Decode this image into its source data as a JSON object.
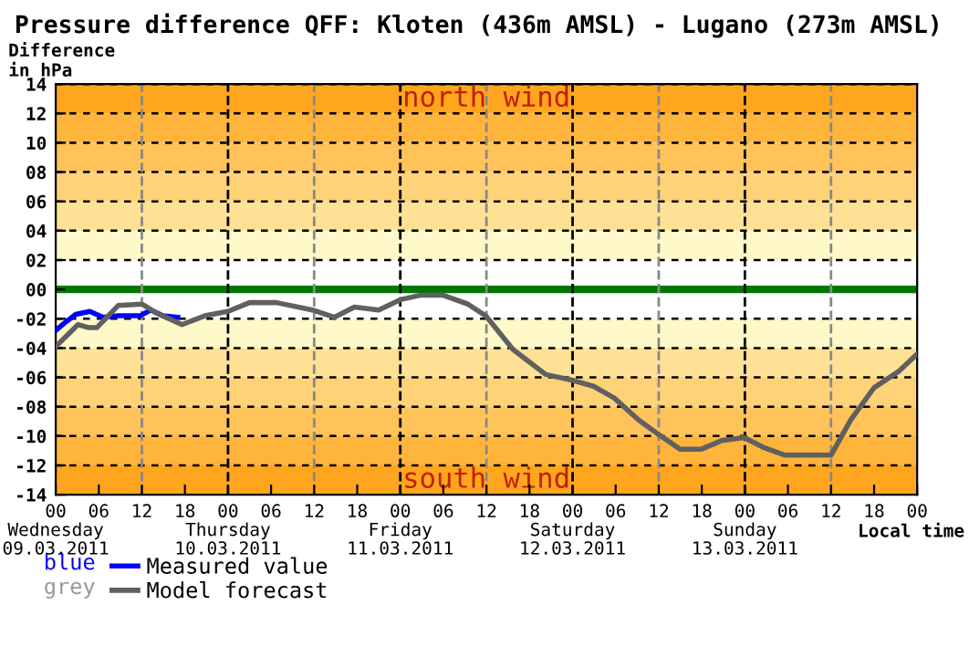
{
  "chart_data": {
    "type": "line",
    "title": "Pressure difference QFF: Kloten (436m AMSL) - Lugano (273m AMSL)",
    "ylabel": "Difference\nin hPa",
    "xlabel": "Local time",
    "x": [
      "2011-03-09T00:00",
      "2011-03-09T03:06",
      "2011-03-09T04:30",
      "2011-03-09T05:45",
      "2011-03-09T08:42",
      "2011-03-09T12:00",
      "2011-03-09T14:00",
      "2011-03-09T17:36",
      "2011-03-09T20:45",
      "2011-03-10T00:00",
      "2011-03-10T03:00",
      "2011-03-10T06:45",
      "2011-03-10T11:45",
      "2011-03-10T14:48",
      "2011-03-10T17:36",
      "2011-03-10T21:00",
      "2011-03-11T00:00",
      "2011-03-11T02:45",
      "2011-03-11T06:00",
      "2011-03-11T09:24",
      "2011-03-11T11:54",
      "2011-03-11T15:42",
      "2011-03-11T20:15",
      "2011-03-12T00:00",
      "2011-03-12T02:54",
      "2011-03-12T05:48",
      "2011-03-12T09:12",
      "2011-03-12T12:00",
      "2011-03-12T15:00",
      "2011-03-12T17:54",
      "2011-03-12T20:48",
      "2011-03-12T23:54",
      "2011-03-13T02:42",
      "2011-03-13T05:36",
      "2011-03-13T12:00",
      "2011-03-13T14:45",
      "2011-03-13T18:00",
      "2011-03-13T21:24",
      "2011-03-14T00:00"
    ],
    "series": [
      {
        "name": "Measured value",
        "color": "#0000ff",
        "x": [
          "2011-03-09T00:00",
          "2011-03-09T01:12",
          "2011-03-09T02:48",
          "2011-03-09T04:45",
          "2011-03-09T06:36",
          "2011-03-09T08:42",
          "2011-03-09T11:45",
          "2011-03-09T13:15",
          "2011-03-09T14:54",
          "2011-03-09T17:00"
        ],
        "values": [
          -2.8,
          -2.3,
          -1.7,
          -1.5,
          -1.9,
          -1.8,
          -1.8,
          -1.4,
          -1.8,
          -1.9
        ]
      },
      {
        "name": "Model forecast",
        "color": "#606060",
        "values": [
          -3.9,
          -2.4,
          -2.6,
          -2.6,
          -1.1,
          -1.0,
          -1.6,
          -2.4,
          -1.8,
          -1.5,
          -0.9,
          -0.9,
          -1.4,
          -1.9,
          -1.2,
          -1.4,
          -0.7,
          -0.4,
          -0.4,
          -1.0,
          -1.8,
          -4.1,
          -5.8,
          -6.2,
          -6.6,
          -7.4,
          -8.9,
          -9.9,
          -10.9,
          -10.9,
          -10.3,
          -10.1,
          -10.8,
          -11.3,
          -11.3,
          -8.9,
          -6.7,
          -5.6,
          -4.4
        ]
      }
    ],
    "xlim": [
      "2011-03-09T00:00",
      "2011-03-14T00:00"
    ],
    "xticks": [
      {
        "value": "2011-03-09T00:00",
        "label": "00\nWednesday\n09.03.2011"
      },
      {
        "value": "2011-03-09T06:00",
        "label": "06"
      },
      {
        "value": "2011-03-09T12:00",
        "label": "12"
      },
      {
        "value": "2011-03-09T18:00",
        "label": "18"
      },
      {
        "value": "2011-03-10T00:00",
        "label": "00\nThursday\n10.03.2011"
      },
      {
        "value": "2011-03-10T06:00",
        "label": "06"
      },
      {
        "value": "2011-03-10T12:00",
        "label": "12"
      },
      {
        "value": "2011-03-10T18:00",
        "label": "18"
      },
      {
        "value": "2011-03-11T00:00",
        "label": "00\nFriday\n11.03.2011"
      },
      {
        "value": "2011-03-11T06:00",
        "label": "06"
      },
      {
        "value": "2011-03-11T12:00",
        "label": "12"
      },
      {
        "value": "2011-03-11T18:00",
        "label": "18"
      },
      {
        "value": "2011-03-12T00:00",
        "label": "00\nSaturday\n12.03.2011"
      },
      {
        "value": "2011-03-12T06:00",
        "label": "06"
      },
      {
        "value": "2011-03-12T12:00",
        "label": "12"
      },
      {
        "value": "2011-03-12T18:00",
        "label": "18"
      },
      {
        "value": "2011-03-13T00:00",
        "label": "00\nSunday\n13.03.2011"
      },
      {
        "value": "2011-03-13T06:00",
        "label": "06"
      },
      {
        "value": "2011-03-13T12:00",
        "label": "12"
      },
      {
        "value": "2011-03-13T18:00",
        "label": "18"
      },
      {
        "value": "2011-03-14T00:00",
        "label": "00"
      }
    ],
    "ylim": [
      -14,
      14
    ],
    "yticks": [
      {
        "value": -14,
        "label": "-14"
      },
      {
        "value": -12,
        "label": "-12"
      },
      {
        "value": -10,
        "label": "-10"
      },
      {
        "value": -8,
        "label": "-08"
      },
      {
        "value": -6,
        "label": "-06"
      },
      {
        "value": -4,
        "label": "-04"
      },
      {
        "value": -2,
        "label": "-02"
      },
      {
        "value": 0,
        "label": "00"
      },
      {
        "value": 2,
        "label": "02"
      },
      {
        "value": 4,
        "label": "04"
      },
      {
        "value": 6,
        "label": "06"
      },
      {
        "value": 8,
        "label": "08"
      },
      10,
      12,
      14
    ],
    "grid": "y",
    "legend": "bottom left",
    "annotations": [
      "blue",
      "grey"
    ],
    "line_style": "solid",
    "marker": "none",
    "ref_lines": [
      {
        "axis": "y",
        "value": 0,
        "color": "#007800"
      },
      {
        "axis": "x",
        "value": "2011-03-09T12:00",
        "color": "#888888",
        "line_style": "dashed"
      },
      {
        "axis": "x",
        "value": "2011-03-10T00:00",
        "color": "#000000",
        "line_style": "dashed"
      },
      {
        "axis": "x",
        "value": "2011-03-10T12:00",
        "color": "#888888",
        "line_style": "dashed"
      },
      {
        "axis": "x",
        "value": "2011-03-11T00:00",
        "color": "#000000",
        "line_style": "dashed"
      },
      {
        "axis": "x",
        "value": "2011-03-11T12:00",
        "color": "#888888",
        "line_style": "dashed"
      },
      {
        "axis": "x",
        "value": "2011-03-12T00:00",
        "color": "#000000",
        "line_style": "dashed"
      },
      {
        "axis": "x",
        "value": "2011-03-12T12:00",
        "color": "#888888",
        "line_style": "dashed"
      },
      {
        "axis": "x",
        "value": "2011-03-13T00:00",
        "color": "#000000",
        "line_style": "dashed"
      },
      {
        "axis": "x",
        "value": "2011-03-13T12:00",
        "color": "#888888",
        "line_style": "dashed"
      }
    ],
    "bands": [
      {
        "axis": "y",
        "from": 12,
        "to": 14,
        "color": "#ffa51e",
        "label": "north wind"
      },
      {
        "axis": "y",
        "from": 10,
        "to": 12,
        "color": "#ffb43c"
      },
      {
        "axis": "y",
        "from": 8,
        "to": 10,
        "color": "#ffc35a"
      },
      {
        "axis": "y",
        "from": 6,
        "to": 8,
        "color": "#ffd278"
      },
      {
        "axis": "y",
        "from": 4,
        "to": 6,
        "color": "#ffe196"
      },
      {
        "axis": "y",
        "from": 2,
        "to": 4,
        "color": "#fff8c8"
      },
      {
        "axis": "y",
        "from": -4,
        "to": -2,
        "color": "#fff8c8"
      },
      {
        "axis": "y",
        "from": -6,
        "to": -4,
        "color": "#ffe196"
      },
      {
        "axis": "y",
        "from": -8,
        "to": -6,
        "color": "#ffd278"
      },
      {
        "axis": "y",
        "from": -10,
        "to": -8,
        "color": "#ffc35a"
      },
      {
        "axis": "y",
        "from": -12,
        "to": -10,
        "color": "#ffb43c"
      },
      {
        "axis": "y",
        "from": -14,
        "to": -12,
        "color": "#ffa51e",
        "label": "south wind"
      }
    ]
  }
}
